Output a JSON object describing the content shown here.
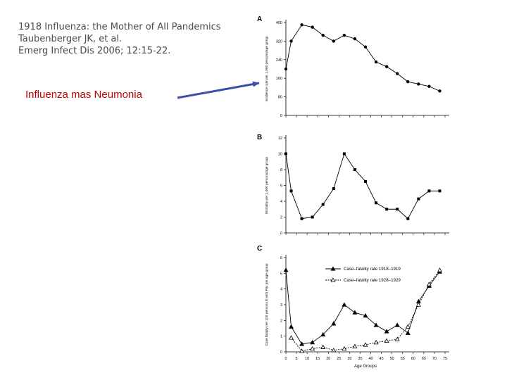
{
  "citation": {
    "line1": "1918 Influenza: the Mother of All Pandemics",
    "line2": "Taubenberger JK, et al.",
    "line3": "Emerg Infect Dis 2006; 12:15-22."
  },
  "caption": "Influenza mas Neumonia",
  "colors": {
    "caption": "#c00000",
    "arrow": "#3b4fa8",
    "plot": "#000000"
  },
  "chart_data": [
    {
      "type": "line",
      "panel_label": "A",
      "ylabel": "Incidence rate per 1,000 persons/age group",
      "ylim": [
        0,
        400
      ],
      "yticks": [
        0,
        80,
        160,
        240,
        320,
        400
      ],
      "x": [
        0,
        2.5,
        7.5,
        12.5,
        17.5,
        22.5,
        27.5,
        32.5,
        37.5,
        42.5,
        47.5,
        52.5,
        57.5,
        62.5,
        67.5,
        72.5
      ],
      "series": [
        {
          "values": [
            200,
            320,
            390,
            380,
            345,
            320,
            345,
            330,
            295,
            230,
            210,
            180,
            145,
            135,
            125,
            105
          ],
          "marker": "circle",
          "dash": "solid"
        }
      ]
    },
    {
      "type": "line",
      "panel_label": "B",
      "ylabel": "Mortality per 1,000 persons/age group",
      "ylim": [
        0,
        12
      ],
      "yticks": [
        0,
        2,
        4,
        6,
        8,
        10,
        12
      ],
      "x": [
        0,
        2.5,
        7.5,
        12.5,
        17.5,
        22.5,
        27.5,
        32.5,
        37.5,
        42.5,
        47.5,
        52.5,
        57.5,
        62.5,
        67.5,
        72.5
      ],
      "series": [
        {
          "values": [
            10,
            5.3,
            1.8,
            2.0,
            3.6,
            5.6,
            10,
            8.0,
            6.5,
            3.8,
            3.0,
            3.0,
            1.8,
            4.3,
            5.3,
            5.3
          ],
          "marker": "square",
          "dash": "solid"
        }
      ]
    },
    {
      "type": "line",
      "panel_label": "C",
      "ylabel": "Case fatality per 100 persons ill with P&I per age group",
      "xlabel": "Age Groups",
      "ylim": [
        0,
        6
      ],
      "xlim": [
        0,
        75
      ],
      "yticks": [
        0,
        1,
        2,
        3,
        4,
        5,
        6
      ],
      "xticks": [
        0,
        5,
        10,
        15,
        20,
        25,
        30,
        35,
        40,
        45,
        50,
        55,
        60,
        65,
        70,
        75
      ],
      "legend_position": "top-right",
      "series": [
        {
          "name": "Case–fatality rate 1918–1919",
          "marker": "filled-triangle",
          "dash": "solid",
          "x": [
            0,
            2.5,
            7.5,
            12.5,
            17.5,
            22.5,
            27.5,
            32.5,
            37.5,
            42.5,
            47.5,
            52.5,
            57.5,
            62.5,
            67.5,
            72.5
          ],
          "values": [
            5.2,
            1.6,
            0.5,
            0.6,
            1.1,
            1.8,
            3.0,
            2.5,
            2.3,
            1.7,
            1.3,
            1.7,
            1.2,
            3.2,
            4.2,
            5.1
          ]
        },
        {
          "name": "Case–fatality rate 1928–1929",
          "marker": "open-triangle",
          "dash": "dashed",
          "x": [
            2.5,
            7.5,
            12.5,
            17.5,
            22.5,
            27.5,
            32.5,
            37.5,
            42.5,
            47.5,
            52.5,
            57.5,
            62.5,
            67.5,
            72.5
          ],
          "values": [
            0.9,
            0.05,
            0.2,
            0.3,
            0.1,
            0.2,
            0.35,
            0.45,
            0.6,
            0.7,
            0.8,
            1.6,
            3.0,
            4.3,
            5.2
          ]
        }
      ]
    }
  ]
}
